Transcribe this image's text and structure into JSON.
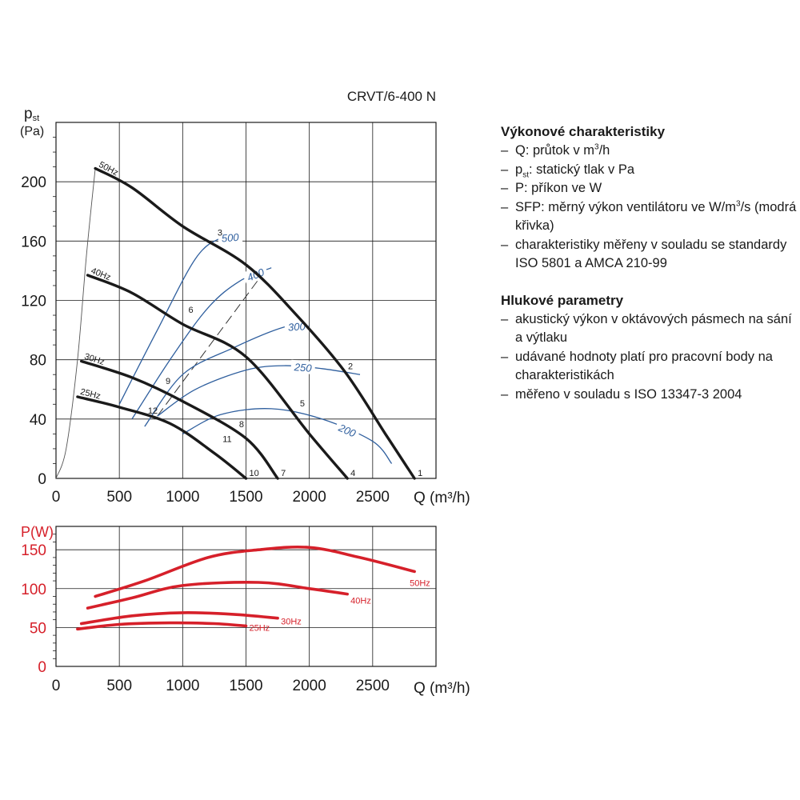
{
  "chart_data": [
    {
      "type": "line",
      "title": "CRVT/6-400 N",
      "ylabel_main": "p",
      "ylabel_sub": "st",
      "ylabel_unit": "(Pa)",
      "xlabel": "Q (m³/h)",
      "xlim": [
        0,
        3000
      ],
      "ylim": [
        0,
        240
      ],
      "xticks": [
        "0",
        "500",
        "1000",
        "1500",
        "2000",
        "2500"
      ],
      "yticks": [
        "0",
        "40",
        "80",
        "120",
        "160",
        "200"
      ],
      "xtick_values": [
        0,
        500,
        1000,
        1500,
        2000,
        2500
      ],
      "ytick_values": [
        0,
        40,
        80,
        120,
        160,
        200
      ],
      "grid": true,
      "series": [
        {
          "name": "50Hz",
          "color": "#1a1a1a",
          "x": [
            310,
            600,
            1000,
            1500,
            1900,
            2280,
            2600,
            2830
          ],
          "y": [
            209,
            196,
            170,
            144,
            110,
            72,
            30,
            0
          ]
        },
        {
          "name": "40Hz",
          "color": "#1a1a1a",
          "x": [
            250,
            600,
            1000,
            1500,
            2000,
            2300
          ],
          "y": [
            137,
            125,
            104,
            82,
            30,
            0
          ]
        },
        {
          "name": "30Hz",
          "color": "#1a1a1a",
          "x": [
            200,
            600,
            1000,
            1500,
            1750
          ],
          "y": [
            79,
            68,
            52,
            27,
            0
          ]
        },
        {
          "name": "25Hz",
          "color": "#1a1a1a",
          "x": [
            170,
            500,
            900,
            1250,
            1500
          ],
          "y": [
            55,
            48,
            37,
            17,
            0
          ]
        }
      ],
      "system_curve": {
        "x": [
          0,
          80,
          170,
          240,
          310
        ],
        "y": [
          0,
          20,
          80,
          150,
          209
        ]
      },
      "dashed_line": {
        "x": [
          800,
          1650
        ],
        "y": [
          42,
          140
        ]
      },
      "sfp_curves": [
        {
          "label": "500",
          "x": [
            500,
            800,
            1100,
            1300,
            1450
          ],
          "y": [
            50,
            100,
            148,
            162,
            163
          ]
        },
        {
          "label": "400",
          "x": [
            600,
            900,
            1200,
            1450,
            1700
          ],
          "y": [
            40,
            80,
            115,
            133,
            142
          ]
        },
        {
          "label": "300",
          "x": [
            700,
            1000,
            1400,
            1800,
            2000
          ],
          "y": [
            35,
            70,
            88,
            102,
            103
          ]
        },
        {
          "label": "250",
          "x": [
            800,
            1100,
            1500,
            1800,
            2100,
            2400
          ],
          "y": [
            42,
            60,
            73,
            76,
            74,
            70
          ]
        },
        {
          "label": "200",
          "x": [
            1000,
            1300,
            1700,
            2100,
            2500,
            2650
          ],
          "y": [
            30,
            43,
            47,
            40,
            25,
            10
          ]
        }
      ],
      "points": [
        {
          "label": "1",
          "x": 2830,
          "y": 0
        },
        {
          "label": "2",
          "x": 2280,
          "y": 72
        },
        {
          "label": "3",
          "x": 1250,
          "y": 162
        },
        {
          "label": "4",
          "x": 2300,
          "y": 0
        },
        {
          "label": "5",
          "x": 1900,
          "y": 47
        },
        {
          "label": "6",
          "x": 1020,
          "y": 110
        },
        {
          "label": "7",
          "x": 1750,
          "y": 0
        },
        {
          "label": "8",
          "x": 1420,
          "y": 33
        },
        {
          "label": "9",
          "x": 840,
          "y": 62
        },
        {
          "label": "10",
          "x": 1500,
          "y": 0
        },
        {
          "label": "11",
          "x": 1290,
          "y": 23
        },
        {
          "label": "12",
          "x": 700,
          "y": 42
        }
      ]
    },
    {
      "type": "line",
      "ylabel": "P(W)",
      "xlabel": "Q (m³/h)",
      "xlim": [
        0,
        3000
      ],
      "ylim": [
        0,
        180
      ],
      "xticks": [
        "0",
        "500",
        "1000",
        "1500",
        "2000",
        "2500"
      ],
      "yticks": [
        "0",
        "50",
        "100",
        "150"
      ],
      "xtick_values": [
        0,
        500,
        1000,
        1500,
        2000,
        2500
      ],
      "ytick_values": [
        0,
        50,
        100,
        150
      ],
      "grid": true,
      "series": [
        {
          "name": "50Hz",
          "color": "#d6202a",
          "x": [
            310,
            700,
            1200,
            1600,
            2000,
            2400,
            2830
          ],
          "y": [
            90,
            110,
            140,
            150,
            153,
            140,
            122
          ]
        },
        {
          "name": "40Hz",
          "color": "#d6202a",
          "x": [
            250,
            600,
            1000,
            1600,
            2000,
            2300
          ],
          "y": [
            75,
            88,
            104,
            108,
            100,
            93
          ]
        },
        {
          "name": "30Hz",
          "color": "#d6202a",
          "x": [
            200,
            600,
            1000,
            1400,
            1750
          ],
          "y": [
            55,
            65,
            69,
            67,
            62
          ]
        },
        {
          "name": "25Hz",
          "color": "#d6202a",
          "x": [
            170,
            500,
            900,
            1250,
            1500
          ],
          "y": [
            48,
            54,
            56,
            55,
            52
          ]
        }
      ]
    }
  ],
  "legend": {
    "performance": {
      "heading": "Výkonové charakteristiky",
      "items": [
        {
          "main": "Q: průtok v m",
          "sup": "3",
          "tail": "/h"
        },
        {
          "main": "p",
          "sub": "st",
          "tail": ": statický tlak v Pa"
        },
        {
          "text": "P: příkon ve W"
        },
        {
          "main": "SFP: měrný výkon ventilátoru ve W/m",
          "sup": "3",
          "tail": "/s (modrá křivka)"
        },
        {
          "text": "charakteristiky měřeny v souladu se standardy ISO 5801 a AMCA 210-99"
        }
      ]
    },
    "noise": {
      "heading": "Hlukové parametry",
      "items": [
        {
          "text": "akustický výkon v oktávových pásmech na sání a výtlaku"
        },
        {
          "text": "udávané hodnoty platí pro pracovní body na charakteristikách"
        },
        {
          "text": "měřeno v souladu s ISO 13347-3 2004"
        }
      ]
    }
  },
  "colors": {
    "fan_curve": "#1a1a1a",
    "sfp_curve": "#2f5f9e",
    "power_curve": "#d6202a",
    "grid": "#1a1a1a"
  }
}
